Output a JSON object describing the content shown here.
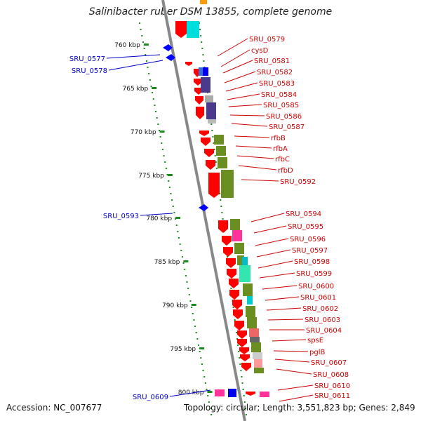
{
  "title": "Salinibacter ruber DSM 13855, complete genome",
  "accession": "Accession: NC_007677",
  "topology": "Topology: circular; Length: 3,551,823 bp; Genes: 2,849",
  "colors": {
    "forward_gene": "#ff0000",
    "reverse_gene": "#0000ff",
    "label_red": "#cc0000",
    "label_blue": "#0000cc",
    "scale": "#1a8a1a",
    "backbone": "#888888"
  },
  "scale_ticks": [
    "760 kbp",
    "765 kbp",
    "770 kbp",
    "775 kbp",
    "780 kbp",
    "785 kbp",
    "790 kbp",
    "795 kbp",
    "800 kbp"
  ],
  "left_labels": [
    "SRU_0577",
    "SRU_0578",
    "SRU_0593",
    "SRU_0609"
  ],
  "right_labels": [
    "SRU_0579",
    "cysD",
    "SRU_0581",
    "SRU_0582",
    "SRU_0583",
    "SRU_0584",
    "SRU_0585",
    "SRU_0586",
    "SRU_0587",
    "rfbB",
    "rfbA",
    "rfbC",
    "rfbD",
    "SRU_0592",
    "SRU_0594",
    "SRU_0595",
    "SRU_0596",
    "SRU_0597",
    "SRU_0598",
    "SRU_0599",
    "SRU_0600",
    "SRU_0601",
    "SRU_0602",
    "SRU_0603",
    "SRU_0604",
    "spsE",
    "pglB",
    "SRU_0607",
    "SRU_0608",
    "SRU_0610",
    "SRU_0611"
  ]
}
